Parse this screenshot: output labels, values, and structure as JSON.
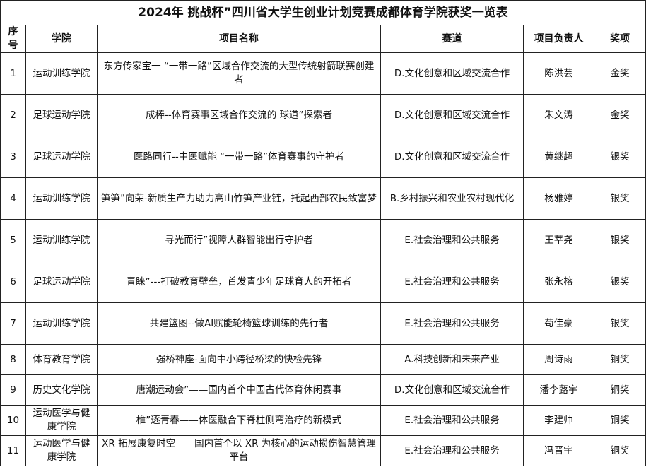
{
  "title": "2024年 挑战杯”四川省大学生创业计划竞赛成都体育学院获奖一览表",
  "headers": [
    "序号",
    "学院",
    "项目名称",
    "赛道",
    "项目负责人",
    "奖项"
  ],
  "rows": [
    {
      "no": "1",
      "college": "运动训练学院",
      "project": "东方传家宝一 “一带一路”区域合作交流的大型传统射箭联赛创建者",
      "track": "D.文化创意和区域交流合作",
      "leader": "陈洪芸",
      "award": "金奖"
    },
    {
      "no": "2",
      "college": "足球运动学院",
      "project": "成棒--体育赛事区域合作交流的 球道”探索者",
      "track": "D.文化创意和区域交流合作",
      "leader": "朱文涛",
      "award": "金奖"
    },
    {
      "no": "3",
      "college": "足球运动学院",
      "project": "医路同行--中医赋能 “一带一路”体育赛事的守护者",
      "track": "D.文化创意和区域交流合作",
      "leader": "黄继超",
      "award": "银奖"
    },
    {
      "no": "4",
      "college": "运动训练学院",
      "project": "笋笋”向荣-新质生产力助力高山竹笋产业链，托起西部农民致富梦",
      "track": "B.乡村振兴和农业农村现代化",
      "leader": "杨雅婷",
      "award": "银奖"
    },
    {
      "no": "5",
      "college": "运动训练学院",
      "project": "寻光而行”视障人群智能出行守护者",
      "track": "E.社会治理和公共服务",
      "leader": "王莘尧",
      "award": "银奖"
    },
    {
      "no": "6",
      "college": "足球运动学院",
      "project": "青睐”---打破教育壁垒，首发青少年足球育人的开拓者",
      "track": "E.社会治理和公共服务",
      "leader": "张永榕",
      "award": "银奖"
    },
    {
      "no": "7",
      "college": "运动训练学院",
      "project": "共建篮图--做AI赋能轮椅篮球训练的先行者",
      "track": "E.社会治理和公共服务",
      "leader": "苟佳豪",
      "award": "银奖"
    },
    {
      "no": "8",
      "college": "体育教育学院",
      "project": "强桥神座-面向中小跨径桥梁的快检先锋",
      "track": "A.科技创新和未来产业",
      "leader": "周诗雨",
      "award": "铜奖"
    },
    {
      "no": "9",
      "college": "历史文化学院",
      "project": "唐潮运动会”——国内首个中国古代体育休闲赛事",
      "track": "D.文化创意和区域交流合作",
      "leader": "潘李蕗宇",
      "award": "铜奖"
    },
    {
      "no": "10",
      "college": "运动医学与健康学院",
      "project": "椎”逐青春——体医融合下脊柱侧弯治疗的新模式",
      "track": "E.社会治理和公共服务",
      "leader": "李建帅",
      "award": "铜奖"
    },
    {
      "no": "11",
      "college": "运动医学与健康学院",
      "project": "XR 拓展康复时空——国内首个以 XR 为核心的运动损伤智慧管理平台",
      "track": "E.社会治理和公共服务",
      "leader": "冯晋宇",
      "award": "铜奖"
    }
  ]
}
